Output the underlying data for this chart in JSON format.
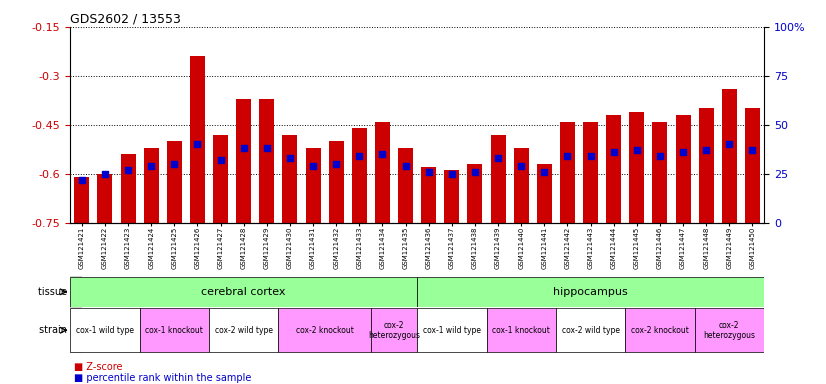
{
  "title": "GDS2602 / 13553",
  "samples": [
    "GSM121421",
    "GSM121422",
    "GSM121423",
    "GSM121424",
    "GSM121425",
    "GSM121426",
    "GSM121427",
    "GSM121428",
    "GSM121429",
    "GSM121430",
    "GSM121431",
    "GSM121432",
    "GSM121433",
    "GSM121434",
    "GSM121435",
    "GSM121436",
    "GSM121437",
    "GSM121438",
    "GSM121439",
    "GSM121440",
    "GSM121441",
    "GSM121442",
    "GSM121443",
    "GSM121444",
    "GSM121445",
    "GSM121446",
    "GSM121447",
    "GSM121448",
    "GSM121449",
    "GSM121450"
  ],
  "z_scores": [
    -0.61,
    -0.6,
    -0.54,
    -0.52,
    -0.5,
    -0.24,
    -0.48,
    -0.37,
    -0.37,
    -0.48,
    -0.52,
    -0.5,
    -0.46,
    -0.44,
    -0.52,
    -0.58,
    -0.59,
    -0.57,
    -0.48,
    -0.52,
    -0.57,
    -0.44,
    -0.44,
    -0.42,
    -0.41,
    -0.44,
    -0.42,
    -0.4,
    -0.34,
    -0.4
  ],
  "percentile_ranks": [
    22,
    25,
    27,
    29,
    30,
    40,
    32,
    38,
    38,
    33,
    29,
    30,
    34,
    35,
    29,
    26,
    25,
    26,
    33,
    29,
    26,
    34,
    34,
    36,
    37,
    34,
    36,
    37,
    40,
    37
  ],
  "bar_color": "#cc0000",
  "percentile_color": "#0000cc",
  "ylim_left": [
    -0.75,
    -0.15
  ],
  "ylim_right": [
    0,
    100
  ],
  "yticks_left": [
    -0.75,
    -0.6,
    -0.45,
    -0.3,
    -0.15
  ],
  "yticks_right": [
    0,
    25,
    50,
    75,
    100
  ],
  "tissue_groups": [
    {
      "label": "cerebral cortex",
      "start": 0,
      "end": 15,
      "color": "#99ff99"
    },
    {
      "label": "hippocampus",
      "start": 15,
      "end": 30,
      "color": "#99ff99"
    }
  ],
  "strain_groups": [
    {
      "label": "cox-1 wild type",
      "start": 0,
      "end": 3,
      "color": "#ffffff"
    },
    {
      "label": "cox-1 knockout",
      "start": 3,
      "end": 6,
      "color": "#ff99ff"
    },
    {
      "label": "cox-2 wild type",
      "start": 6,
      "end": 9,
      "color": "#ffffff"
    },
    {
      "label": "cox-2 knockout",
      "start": 9,
      "end": 13,
      "color": "#ff99ff"
    },
    {
      "label": "cox-2\nheterozygous",
      "start": 13,
      "end": 15,
      "color": "#ff99ff"
    },
    {
      "label": "cox-1 wild type",
      "start": 15,
      "end": 18,
      "color": "#ffffff"
    },
    {
      "label": "cox-1 knockout",
      "start": 18,
      "end": 21,
      "color": "#ff99ff"
    },
    {
      "label": "cox-2 wild type",
      "start": 21,
      "end": 24,
      "color": "#ffffff"
    },
    {
      "label": "cox-2 knockout",
      "start": 24,
      "end": 27,
      "color": "#ff99ff"
    },
    {
      "label": "cox-2\nheterozygous",
      "start": 27,
      "end": 30,
      "color": "#ff99ff"
    }
  ],
  "chart_bg": "#ffffff",
  "fig_bg": "#ffffff",
  "axis_label_color_left": "#cc0000",
  "axis_label_color_right": "#0000cc",
  "tissue_label_area_bg": "#d0d0d0",
  "strain_label_area_bg": "#d0d0d0"
}
